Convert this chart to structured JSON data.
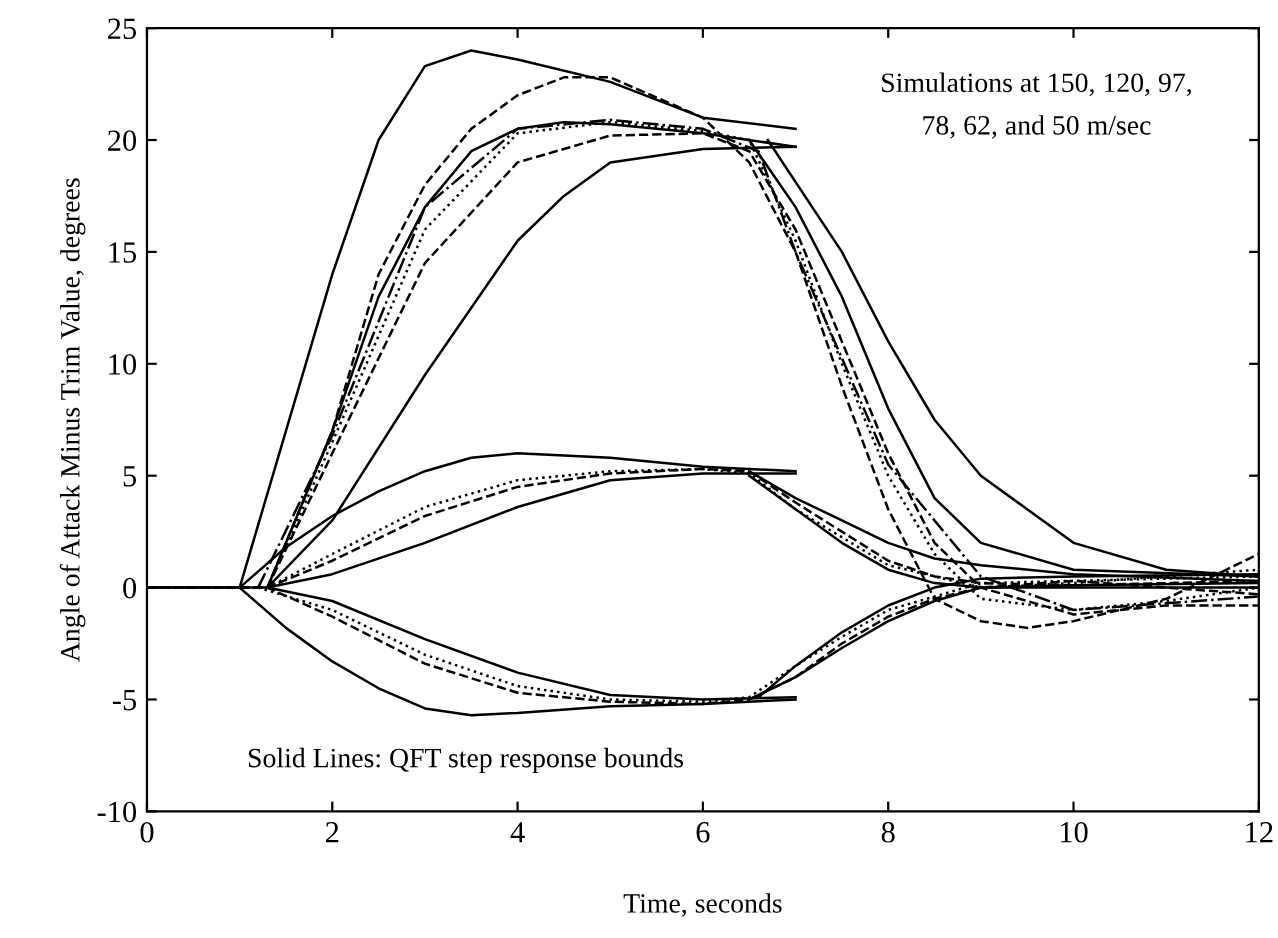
{
  "chart_data": {
    "type": "line",
    "xlabel": "Time, seconds",
    "ylabel": "Angle of Attack Minus Trim Value, degrees",
    "xlim": [
      0,
      12
    ],
    "ylim": [
      -10,
      25
    ],
    "xticks": [
      0,
      2,
      4,
      6,
      8,
      10,
      12
    ],
    "yticks": [
      -10,
      -5,
      0,
      5,
      10,
      15,
      20,
      25
    ],
    "grid": false,
    "legend": false,
    "marker": "none",
    "annotations": [
      "Simulations at 150, 120, 97,\n78, 62, and 50 m/sec",
      "Solid Lines: QFT step response bounds"
    ],
    "series": [
      {
        "color": "#000000",
        "line_style": "solid",
        "x": [
          0,
          1,
          1.5,
          2,
          2.5,
          3,
          3.5,
          4,
          5,
          6,
          7
        ],
        "values": [
          0,
          0,
          7,
          14,
          20,
          23.3,
          24,
          23.6,
          22.6,
          21,
          20.5
        ]
      },
      {
        "color": "#000000",
        "line_style": "solid",
        "x": [
          0,
          1.3,
          2,
          2.5,
          3,
          3.5,
          4,
          4.5,
          5,
          6,
          7
        ],
        "values": [
          0,
          0,
          7,
          13,
          17,
          19.5,
          20.5,
          20.8,
          20.7,
          20.3,
          19.7
        ]
      },
      {
        "color": "#000000",
        "line_style": "solid",
        "x": [
          1.3,
          2,
          3,
          4,
          4.5,
          5,
          6,
          7
        ],
        "values": [
          0,
          3,
          9.5,
          15.5,
          17.5,
          19,
          19.6,
          19.7
        ]
      },
      {
        "color": "#000000",
        "line_style": "solid",
        "x": [
          6.5,
          7,
          7.5,
          8,
          8.5,
          9,
          10,
          12
        ],
        "values": [
          20,
          17,
          13,
          8,
          4,
          2,
          0.8,
          0.5
        ]
      },
      {
        "color": "#000000",
        "line_style": "solid",
        "x": [
          6.7,
          7.5,
          8,
          8.5,
          9,
          10,
          11,
          12
        ],
        "values": [
          20,
          15,
          11,
          7.5,
          5,
          2,
          0.8,
          0.5
        ]
      },
      {
        "color": "#000000",
        "line_style": "dashed",
        "x": [
          0,
          1.3,
          2,
          2.5,
          3,
          3.5,
          4,
          4.5,
          5,
          6,
          6.5,
          7,
          7.5,
          8,
          8.5,
          9,
          9.5,
          10,
          11,
          12
        ],
        "values": [
          0,
          0,
          7,
          14,
          18,
          20.5,
          22,
          22.8,
          22.8,
          21,
          19,
          15,
          9,
          3.5,
          -0.5,
          -1.5,
          -1.8,
          -1.5,
          -0.5,
          1.5
        ]
      },
      {
        "color": "#000000",
        "line_style": "dashed",
        "x": [
          1.3,
          2,
          3,
          4,
          5,
          6,
          6.5,
          7,
          7.5,
          8,
          8.5,
          9,
          10,
          11,
          12
        ],
        "values": [
          0,
          6,
          14.5,
          19,
          20.2,
          20.3,
          19.5,
          16,
          11,
          6,
          2,
          0,
          -1.2,
          -0.8,
          -0.8
        ]
      },
      {
        "color": "#000000",
        "line_style": "dotted",
        "x": [
          1.3,
          2,
          3,
          4,
          5,
          6,
          6.5,
          7,
          7.5,
          8,
          8.5,
          9,
          10,
          11,
          12
        ],
        "values": [
          0,
          6.5,
          16,
          20.3,
          20.8,
          20.4,
          20,
          15.5,
          10,
          5,
          1.5,
          -0.5,
          -1,
          -0.6,
          0
        ]
      },
      {
        "color": "#000000",
        "line_style": "dashdot",
        "x": [
          1.2,
          2,
          3,
          4,
          5,
          6,
          6.6,
          7,
          8,
          9,
          10,
          12
        ],
        "values": [
          0,
          6.8,
          17,
          20.5,
          20.9,
          20.5,
          19.5,
          15,
          5.5,
          0.5,
          -1,
          -0.4
        ]
      },
      {
        "color": "#000000",
        "line_style": "solid",
        "x": [
          1,
          1.5,
          2,
          2.5,
          3,
          3.5,
          4,
          5,
          6,
          7
        ],
        "values": [
          0,
          1.8,
          3.2,
          4.3,
          5.2,
          5.8,
          6,
          5.8,
          5.4,
          5.2
        ]
      },
      {
        "color": "#000000",
        "line_style": "solid",
        "x": [
          1.3,
          2,
          3,
          4,
          5,
          6,
          7
        ],
        "values": [
          0,
          0.6,
          2,
          3.6,
          4.8,
          5.1,
          5.1
        ]
      },
      {
        "color": "#000000",
        "line_style": "solid",
        "x": [
          6.5,
          7,
          7.5,
          8,
          8.5,
          9,
          10,
          12
        ],
        "values": [
          5.2,
          4,
          3,
          2,
          1.3,
          1,
          0.6,
          0.3
        ]
      },
      {
        "color": "#000000",
        "line_style": "solid",
        "x": [
          6.5,
          7,
          7.5,
          8,
          8.5,
          9,
          10,
          12
        ],
        "values": [
          5,
          3.5,
          2,
          0.8,
          0.2,
          0,
          0,
          0
        ]
      },
      {
        "color": "#000000",
        "line_style": "dashed",
        "x": [
          0,
          1.3,
          2,
          3,
          4,
          5,
          6,
          6.5,
          7,
          7.5,
          8,
          8.5,
          9,
          10,
          12
        ],
        "values": [
          0,
          0,
          1.2,
          3.2,
          4.5,
          5.1,
          5.3,
          5.2,
          3.8,
          2.5,
          1.2,
          0.5,
          0.2,
          0.1,
          0.3
        ]
      },
      {
        "color": "#000000",
        "line_style": "dotted",
        "x": [
          1.3,
          2,
          3,
          4,
          5,
          6,
          6.5,
          7,
          8,
          9,
          10,
          12
        ],
        "values": [
          0,
          1.5,
          3.6,
          4.8,
          5.2,
          5.3,
          5.1,
          3.5,
          1,
          0,
          0.2,
          0.8
        ]
      },
      {
        "color": "#000000",
        "line_style": "solid",
        "x": [
          1.3,
          2,
          3,
          4,
          5,
          6,
          7
        ],
        "values": [
          0,
          -0.6,
          -2.3,
          -3.8,
          -4.8,
          -5,
          -4.9
        ]
      },
      {
        "color": "#000000",
        "line_style": "solid",
        "x": [
          1,
          1.5,
          2,
          2.5,
          3,
          3.5,
          4,
          5,
          6,
          7
        ],
        "values": [
          0,
          -1.8,
          -3.3,
          -4.5,
          -5.4,
          -5.7,
          -5.6,
          -5.3,
          -5.2,
          -5
        ]
      },
      {
        "color": "#000000",
        "line_style": "solid",
        "x": [
          6.5,
          7,
          7.5,
          8,
          8.5,
          9,
          10,
          12
        ],
        "values": [
          -5,
          -4,
          -2.7,
          -1.5,
          -0.6,
          0,
          0.1,
          0.2
        ]
      },
      {
        "color": "#000000",
        "line_style": "solid",
        "x": [
          6.6,
          7,
          7.5,
          8,
          8.5,
          9,
          10,
          12
        ],
        "values": [
          -4.9,
          -3.5,
          -2,
          -0.8,
          0,
          0.4,
          0.5,
          0.6
        ]
      },
      {
        "color": "#000000",
        "line_style": "dashed",
        "x": [
          0,
          1.3,
          2,
          3,
          4,
          5,
          6,
          6.5,
          7,
          7.5,
          8,
          8.5,
          9,
          10,
          12
        ],
        "values": [
          0,
          0,
          -1.3,
          -3.4,
          -4.7,
          -5.1,
          -5.2,
          -5,
          -4,
          -2.5,
          -1.3,
          -0.5,
          0,
          0.3,
          -0.3
        ]
      },
      {
        "color": "#000000",
        "line_style": "dotted",
        "x": [
          1.2,
          2,
          3,
          4,
          5,
          6,
          6.5,
          7,
          7.5,
          8,
          9,
          10,
          12
        ],
        "values": [
          0,
          -1,
          -3,
          -4.4,
          -5,
          -5.1,
          -4.9,
          -3.5,
          -2.2,
          -1,
          0.2,
          0.3,
          0.5
        ]
      }
    ]
  }
}
